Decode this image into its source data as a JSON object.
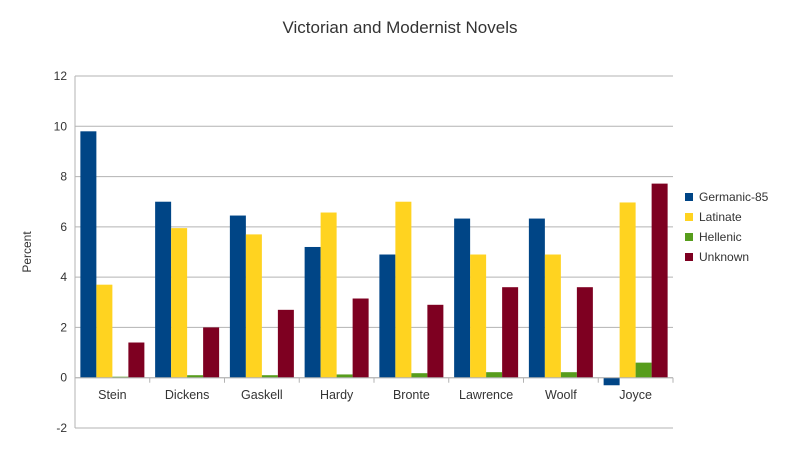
{
  "chart_data": {
    "type": "bar",
    "title": "Victorian and Modernist Novels",
    "xlabel": "",
    "ylabel": "Percent",
    "ylim": [
      -2,
      12
    ],
    "yticks": [
      -2,
      0,
      2,
      4,
      6,
      8,
      10,
      12
    ],
    "grid": true,
    "legend_position": "right",
    "categories": [
      "Stein",
      "Dickens",
      "Gaskell",
      "Hardy",
      "Bronte",
      "Lawrence",
      "Woolf",
      "Joyce"
    ],
    "series": [
      {
        "name": "Germanic-85",
        "color": "#004586",
        "values": [
          9.8,
          7.0,
          6.45,
          5.2,
          4.9,
          6.33,
          6.33,
          -0.3
        ]
      },
      {
        "name": "Latinate",
        "color": "#ffd320",
        "values": [
          3.7,
          5.95,
          5.7,
          6.57,
          7.0,
          4.9,
          4.9,
          6.97
        ]
      },
      {
        "name": "Hellenic",
        "color": "#579d1c",
        "values": [
          0.04,
          0.1,
          0.1,
          0.13,
          0.18,
          0.22,
          0.22,
          0.6
        ]
      },
      {
        "name": "Unknown",
        "color": "#7e0021",
        "values": [
          1.4,
          2.0,
          2.7,
          3.15,
          2.9,
          3.6,
          3.6,
          7.72
        ]
      }
    ]
  }
}
